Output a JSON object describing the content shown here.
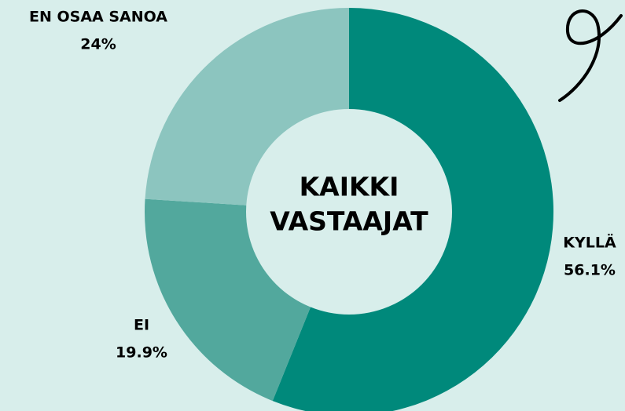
{
  "chart_data": {
    "type": "donut",
    "categories": [
      "KYLLÄ",
      "EI",
      "EN OSAA SANOA"
    ],
    "values": [
      56.1,
      19.9,
      24
    ],
    "value_labels": [
      "56.1%",
      "19.9%",
      "24%"
    ],
    "colors": [
      "#00897b",
      "#52a89d",
      "#8cc5bf"
    ],
    "center_label": [
      "KAIKKI",
      "VASTAAJAT"
    ]
  }
}
